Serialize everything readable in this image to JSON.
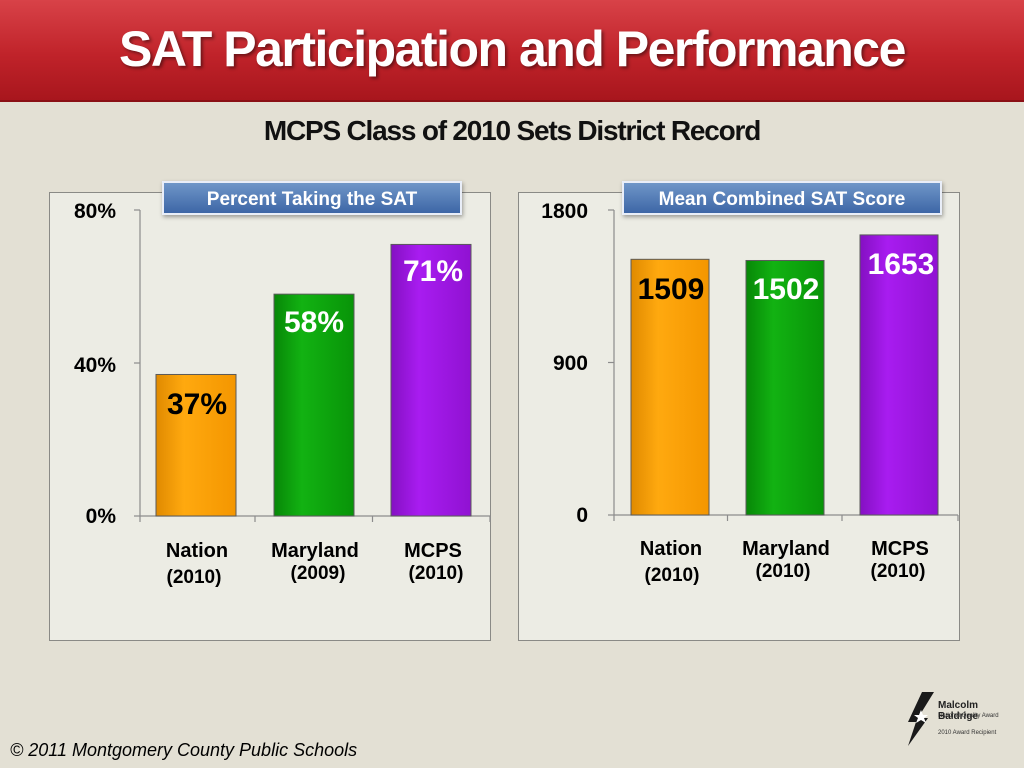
{
  "header": {
    "title": "SAT Participation and Performance"
  },
  "subtitle": "MCPS Class of 2010 Sets District Record",
  "footer": {
    "copyright": "© 2011 Montgomery County Public Schools"
  },
  "logo": {
    "name": "Malcolm Baldrige",
    "line2": "National Quality Award",
    "line3": "2010 Award Recipient"
  },
  "colors": {
    "nation": "#ffa500",
    "maryland": "#0aa30a",
    "mcps": "#9d14e0",
    "header": "#c0232a",
    "label_box": "#4a72b0"
  },
  "chart_data": [
    {
      "type": "bar",
      "title": "Percent Taking the SAT",
      "categories": [
        {
          "name": "Nation",
          "year": "(2010)"
        },
        {
          "name": "Maryland",
          "year": "(2009)"
        },
        {
          "name": "MCPS",
          "year": "(2010)"
        }
      ],
      "values": [
        37,
        58,
        71
      ],
      "value_labels": [
        "37%",
        "58%",
        "71%"
      ],
      "label_colors": [
        "#000000",
        "#ffffff",
        "#ffffff"
      ],
      "yticks": [
        "0%",
        "40%",
        "80%"
      ],
      "ylim": [
        0,
        80
      ],
      "grid": false
    },
    {
      "type": "bar",
      "title": "Mean Combined SAT Score",
      "categories": [
        {
          "name": "Nation",
          "year": "(2010)"
        },
        {
          "name": "Maryland",
          "year": "(2010)"
        },
        {
          "name": "MCPS",
          "year": "(2010)"
        }
      ],
      "values": [
        1509,
        1502,
        1653
      ],
      "value_labels": [
        "1509",
        "1502",
        "1653"
      ],
      "label_colors": [
        "#000000",
        "#ffffff",
        "#ffffff"
      ],
      "yticks": [
        "0",
        "900",
        "1800"
      ],
      "ylim": [
        0,
        1800
      ],
      "grid": false
    }
  ]
}
